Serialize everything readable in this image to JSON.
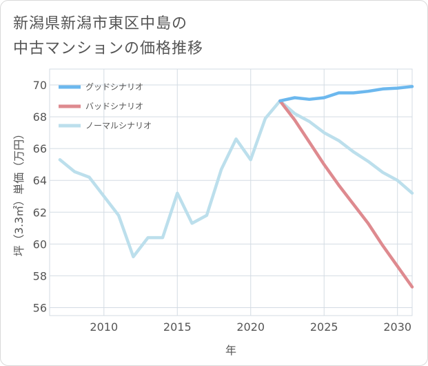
{
  "title": {
    "line1": "新潟県新潟市東区中島の",
    "line2": "中古マンションの価格推移"
  },
  "chart_data": {
    "type": "line",
    "xlabel": "年",
    "ylabel": "坪（3.3㎡）単価（万円）",
    "xlim": [
      2006.3,
      2031
    ],
    "ylim": [
      55.5,
      71
    ],
    "xticks": [
      2010,
      2015,
      2020,
      2025,
      2030
    ],
    "xtick_labels": [
      "2010",
      "2015",
      "2020",
      "2025",
      "2030"
    ],
    "yticks": [
      56,
      58,
      60,
      62,
      64,
      66,
      68,
      70
    ],
    "ytick_labels": [
      "56",
      "58",
      "60",
      "62",
      "64",
      "66",
      "68",
      "70"
    ],
    "grid": true,
    "legend_position": "top-left",
    "series": [
      {
        "name": "グッドシナリオ",
        "color": "#6cb8ee",
        "x": [
          2022,
          2023,
          2024,
          2025,
          2026,
          2027,
          2028,
          2029,
          2030,
          2031
        ],
        "y": [
          69.0,
          69.2,
          69.1,
          69.2,
          69.5,
          69.5,
          69.6,
          69.75,
          69.8,
          69.9
        ]
      },
      {
        "name": "バッドシナリオ",
        "color": "#de8a8f",
        "x": [
          2022,
          2023,
          2024,
          2025,
          2026,
          2027,
          2028,
          2029,
          2030,
          2031
        ],
        "y": [
          69.0,
          67.8,
          66.4,
          65.0,
          63.7,
          62.5,
          61.3,
          59.9,
          58.6,
          57.3
        ]
      },
      {
        "name": "ノーマルシナリオ",
        "color": "#bcdfec",
        "x": [
          2007,
          2008,
          2009,
          2010,
          2011,
          2012,
          2013,
          2014,
          2015,
          2016,
          2017,
          2018,
          2019,
          2020,
          2021,
          2022,
          2023,
          2024,
          2025,
          2026,
          2027,
          2028,
          2029,
          2030,
          2031
        ],
        "y": [
          65.3,
          64.55,
          64.2,
          63.0,
          61.8,
          59.2,
          60.4,
          60.4,
          63.2,
          61.3,
          61.8,
          64.7,
          66.6,
          65.3,
          67.9,
          69.0,
          68.2,
          67.7,
          67.0,
          66.5,
          65.8,
          65.2,
          64.5,
          64.0,
          63.2
        ]
      }
    ]
  }
}
